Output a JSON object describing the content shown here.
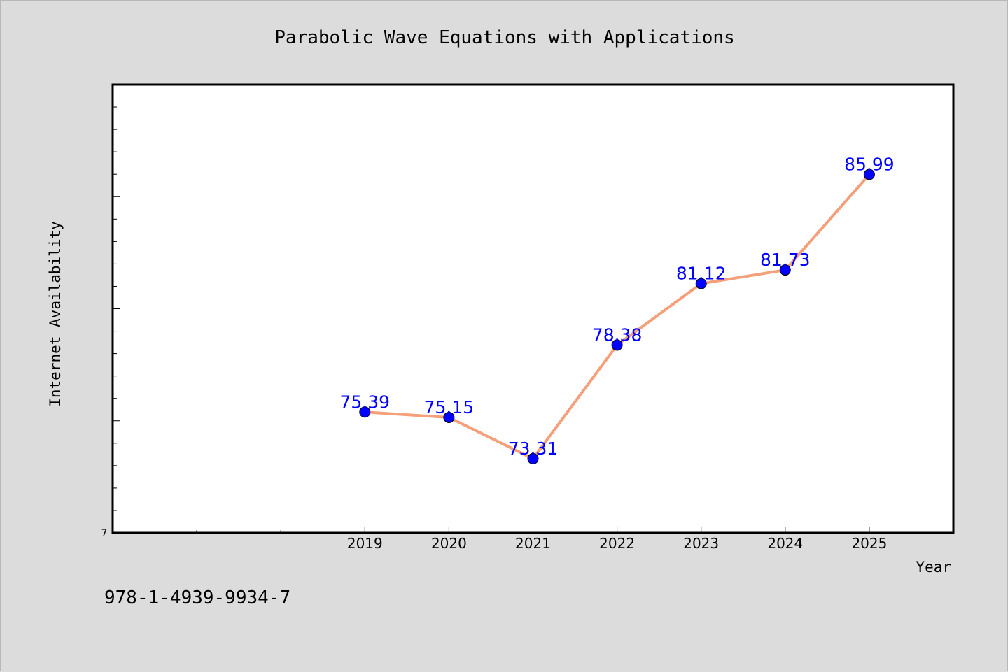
{
  "chart_data": {
    "type": "line",
    "title": "Parabolic Wave Equations with Applications",
    "xlabel": "Year",
    "ylabel": "Internet Availability",
    "categories": [
      "2019",
      "2020",
      "2021",
      "2022",
      "2023",
      "2024",
      "2025"
    ],
    "series": [
      {
        "values": [
          75.39,
          75.15,
          73.31,
          78.38,
          81.12,
          81.73,
          85.99
        ],
        "data_labels": [
          "75.39",
          "75.15",
          "73.31",
          "78.38",
          "81.12",
          "81.73",
          "85.99"
        ]
      }
    ],
    "ylim": [
      70,
      90
    ],
    "y_tick_labels": [
      "7"
    ],
    "x_range": [
      2016,
      2026
    ],
    "line_color": "#f4a07a",
    "marker_color": "#0000ff",
    "label_color": "#0000ff",
    "grid": false
  },
  "footer": {
    "isbn": "978-1-4939-9934-7"
  }
}
